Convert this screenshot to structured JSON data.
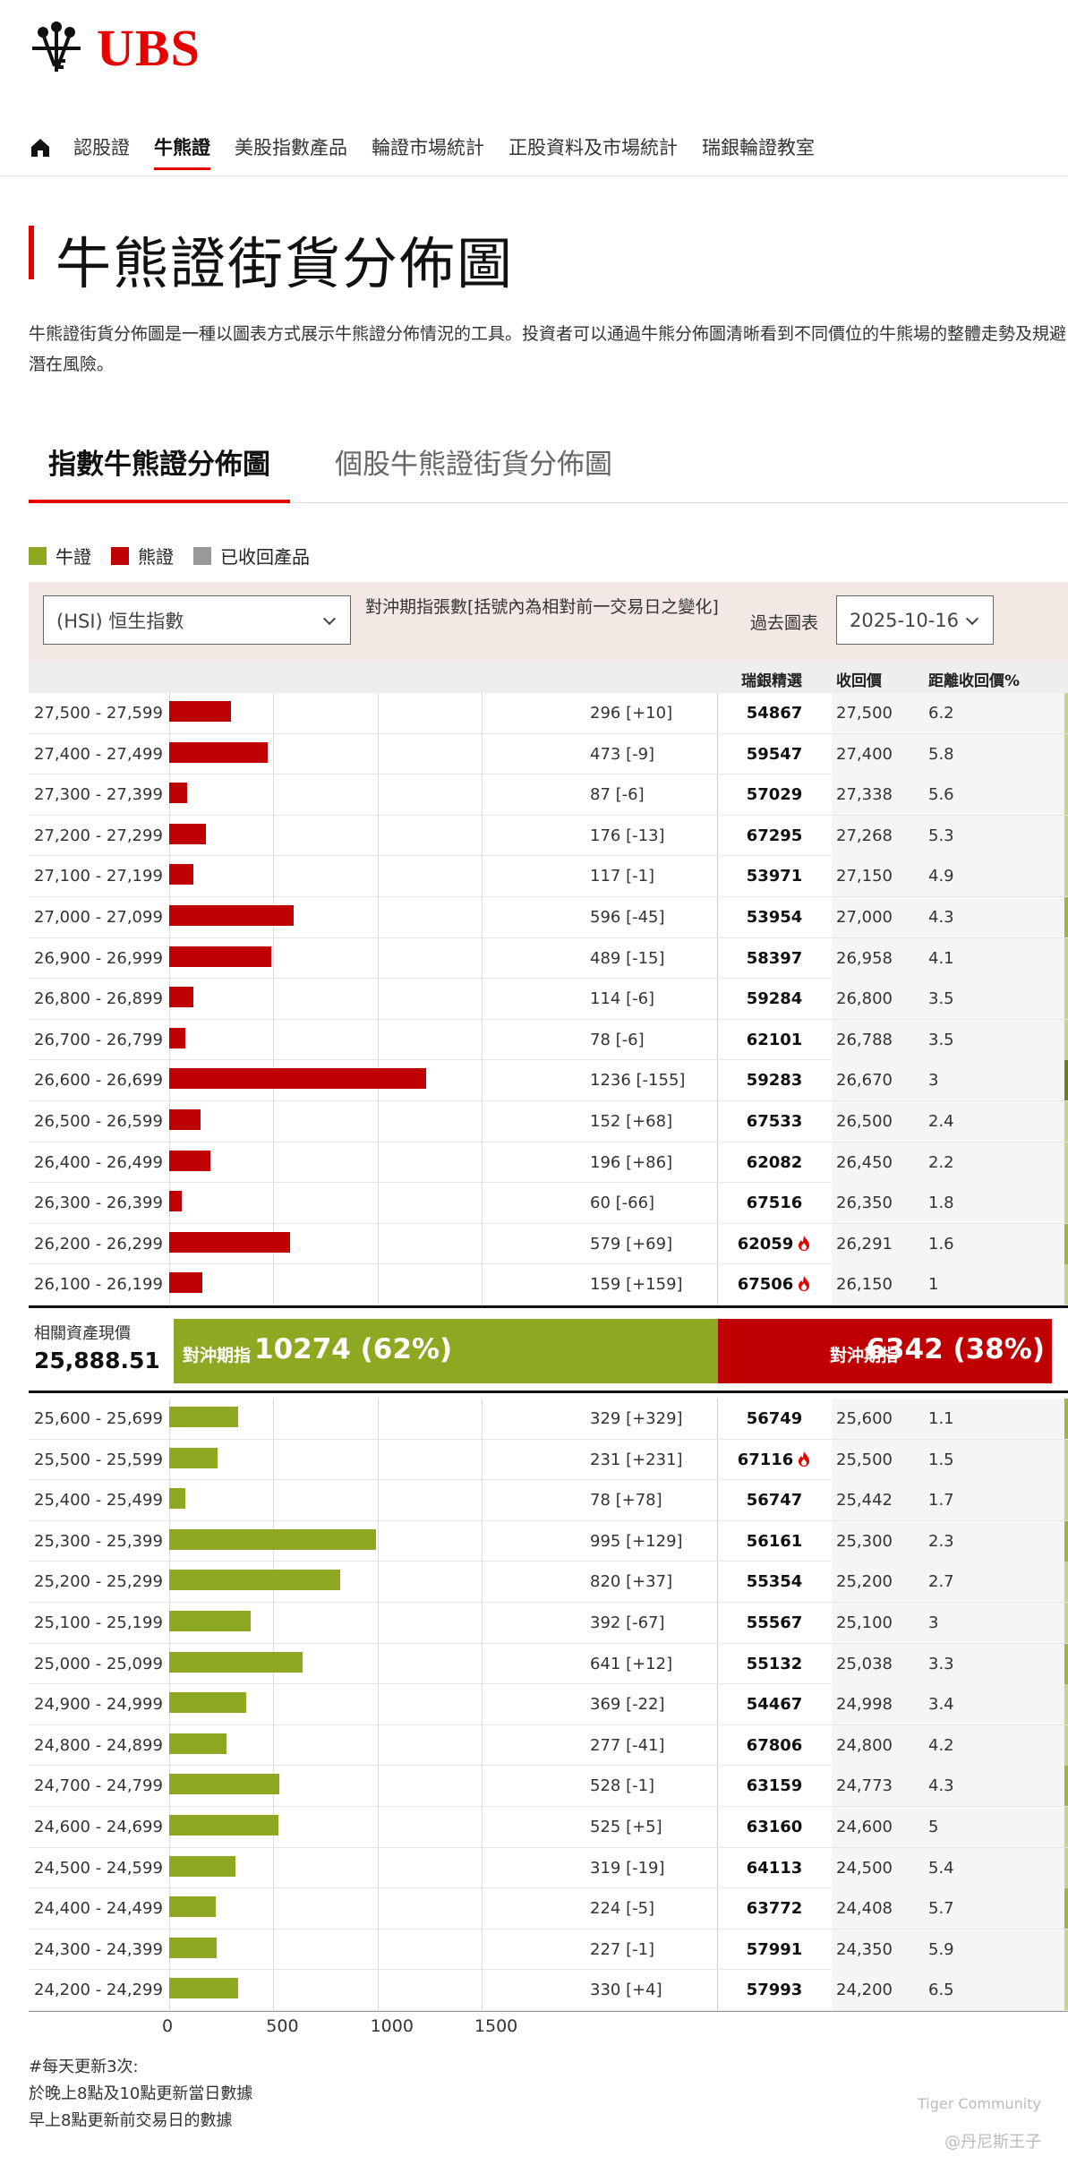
{
  "brand": {
    "name": "UBS"
  },
  "nav": {
    "items": [
      "認股證",
      "牛熊證",
      "美股指數產品",
      "輪證市場統計",
      "正股資料及市場統計",
      "瑞銀輪證教室"
    ],
    "active": "牛熊證"
  },
  "page": {
    "title": "牛熊證街貨分佈圖",
    "intro": "牛熊證街貨分佈圖是一種以圖表方式展示牛熊證分佈情況的工具。投資者可以通過牛熊分佈圖清晰看到不同價位的牛熊場的整體走勢及規避潛在風險。"
  },
  "tabs": [
    "指數牛熊證分佈圖",
    "個股牛熊證街貨分佈圖"
  ],
  "legend": [
    {
      "label": "牛證",
      "color": "#8fa822"
    },
    {
      "label": "熊證",
      "color": "#c00000"
    },
    {
      "label": "已收回產品",
      "color": "#999999"
    }
  ],
  "controls": {
    "index_select": "(HSI) 恒生指數",
    "hedge_label": "對沖期指張數[括號內為相對前一交易日之變化]",
    "past_chart_label": "過去圖表",
    "date_select": "2025-10-16"
  },
  "table_headers": {
    "code": "瑞銀精選",
    "call": "收回價",
    "distance": "距離收回價%"
  },
  "mid": {
    "label": "相關資產現價",
    "price": "25,888.51",
    "bull_label": "對沖期指",
    "bull_value": "10274 (62%)",
    "bull_share": 0.62,
    "bear_label": "對沖期指",
    "bear_value": "6342 (38%)",
    "bear_share": 0.38
  },
  "chart_data": {
    "type": "bar",
    "orientation": "horizontal",
    "xlim": [
      0,
      1800
    ],
    "xticks": [
      "0",
      "500",
      "1000",
      "1500"
    ],
    "bear_rows": [
      {
        "range": "27,500 - 27,599",
        "value": 296,
        "label": "296 [+10]",
        "code": "54867",
        "call": "27,500",
        "dist": "6.2",
        "fire": false
      },
      {
        "range": "27,400 - 27,499",
        "value": 473,
        "label": "473 [-9]",
        "code": "59547",
        "call": "27,400",
        "dist": "5.8",
        "fire": false
      },
      {
        "range": "27,300 - 27,399",
        "value": 87,
        "label": "87 [-6]",
        "code": "57029",
        "call": "27,338",
        "dist": "5.6",
        "fire": false
      },
      {
        "range": "27,200 - 27,299",
        "value": 176,
        "label": "176 [-13]",
        "code": "67295",
        "call": "27,268",
        "dist": "5.3",
        "fire": false
      },
      {
        "range": "27,100 - 27,199",
        "value": 117,
        "label": "117 [-1]",
        "code": "53971",
        "call": "27,150",
        "dist": "4.9",
        "fire": false
      },
      {
        "range": "27,000 - 27,099",
        "value": 596,
        "label": "596 [-45]",
        "code": "53954",
        "call": "27,000",
        "dist": "4.3",
        "fire": false
      },
      {
        "range": "26,900 - 26,999",
        "value": 489,
        "label": "489 [-15]",
        "code": "58397",
        "call": "26,958",
        "dist": "4.1",
        "fire": false
      },
      {
        "range": "26,800 - 26,899",
        "value": 114,
        "label": "114 [-6]",
        "code": "59284",
        "call": "26,800",
        "dist": "3.5",
        "fire": false
      },
      {
        "range": "26,700 - 26,799",
        "value": 78,
        "label": "78 [-6]",
        "code": "62101",
        "call": "26,788",
        "dist": "3.5",
        "fire": false
      },
      {
        "range": "26,600 - 26,699",
        "value": 1236,
        "label": "1236 [-155]",
        "code": "59283",
        "call": "26,670",
        "dist": "3",
        "fire": false
      },
      {
        "range": "26,500 - 26,599",
        "value": 152,
        "label": "152 [+68]",
        "code": "67533",
        "call": "26,500",
        "dist": "2.4",
        "fire": false
      },
      {
        "range": "26,400 - 26,499",
        "value": 196,
        "label": "196 [+86]",
        "code": "62082",
        "call": "26,450",
        "dist": "2.2",
        "fire": false
      },
      {
        "range": "26,300 - 26,399",
        "value": 60,
        "label": "60 [-66]",
        "code": "67516",
        "call": "26,350",
        "dist": "1.8",
        "fire": false
      },
      {
        "range": "26,200 - 26,299",
        "value": 579,
        "label": "579 [+69]",
        "code": "62059",
        "call": "26,291",
        "dist": "1.6",
        "fire": true
      },
      {
        "range": "26,100 - 26,199",
        "value": 159,
        "label": "159 [+159]",
        "code": "67506",
        "call": "26,150",
        "dist": "1",
        "fire": true
      }
    ],
    "bull_rows": [
      {
        "range": "25,600 - 25,699",
        "value": 329,
        "label": "329 [+329]",
        "code": "56749",
        "call": "25,600",
        "dist": "1.1",
        "fire": false
      },
      {
        "range": "25,500 - 25,599",
        "value": 231,
        "label": "231 [+231]",
        "code": "67116",
        "call": "25,500",
        "dist": "1.5",
        "fire": true
      },
      {
        "range": "25,400 - 25,499",
        "value": 78,
        "label": "78 [+78]",
        "code": "56747",
        "call": "25,442",
        "dist": "1.7",
        "fire": false
      },
      {
        "range": "25,300 - 25,399",
        "value": 995,
        "label": "995 [+129]",
        "code": "56161",
        "call": "25,300",
        "dist": "2.3",
        "fire": false
      },
      {
        "range": "25,200 - 25,299",
        "value": 820,
        "label": "820 [+37]",
        "code": "55354",
        "call": "25,200",
        "dist": "2.7",
        "fire": false
      },
      {
        "range": "25,100 - 25,199",
        "value": 392,
        "label": "392 [-67]",
        "code": "55567",
        "call": "25,100",
        "dist": "3",
        "fire": false
      },
      {
        "range": "25,000 - 25,099",
        "value": 641,
        "label": "641 [+12]",
        "code": "55132",
        "call": "25,038",
        "dist": "3.3",
        "fire": false
      },
      {
        "range": "24,900 - 24,999",
        "value": 369,
        "label": "369 [-22]",
        "code": "54467",
        "call": "24,998",
        "dist": "3.4",
        "fire": false
      },
      {
        "range": "24,800 - 24,899",
        "value": 277,
        "label": "277 [-41]",
        "code": "67806",
        "call": "24,800",
        "dist": "4.2",
        "fire": false
      },
      {
        "range": "24,700 - 24,799",
        "value": 528,
        "label": "528 [-1]",
        "code": "63159",
        "call": "24,773",
        "dist": "4.3",
        "fire": false
      },
      {
        "range": "24,600 - 24,699",
        "value": 525,
        "label": "525 [+5]",
        "code": "63160",
        "call": "24,600",
        "dist": "5",
        "fire": false
      },
      {
        "range": "24,500 - 24,599",
        "value": 319,
        "label": "319 [-19]",
        "code": "64113",
        "call": "24,500",
        "dist": "5.4",
        "fire": false
      },
      {
        "range": "24,400 - 24,499",
        "value": 224,
        "label": "224 [-5]",
        "code": "63772",
        "call": "24,408",
        "dist": "5.7",
        "fire": false
      },
      {
        "range": "24,300 - 24,399",
        "value": 227,
        "label": "227 [-1]",
        "code": "57991",
        "call": "24,350",
        "dist": "5.9",
        "fire": false
      },
      {
        "range": "24,200 - 24,299",
        "value": 330,
        "label": "330 [+4]",
        "code": "57993",
        "call": "24,200",
        "dist": "6.5",
        "fire": false
      }
    ]
  },
  "footnote": [
    "#每天更新3次:",
    "於晚上8點及10點更新當日數據",
    "早上8點更新前交易日的數據"
  ],
  "watermark": {
    "line1": "Tiger Community",
    "line2": "@丹尼斯王子"
  }
}
